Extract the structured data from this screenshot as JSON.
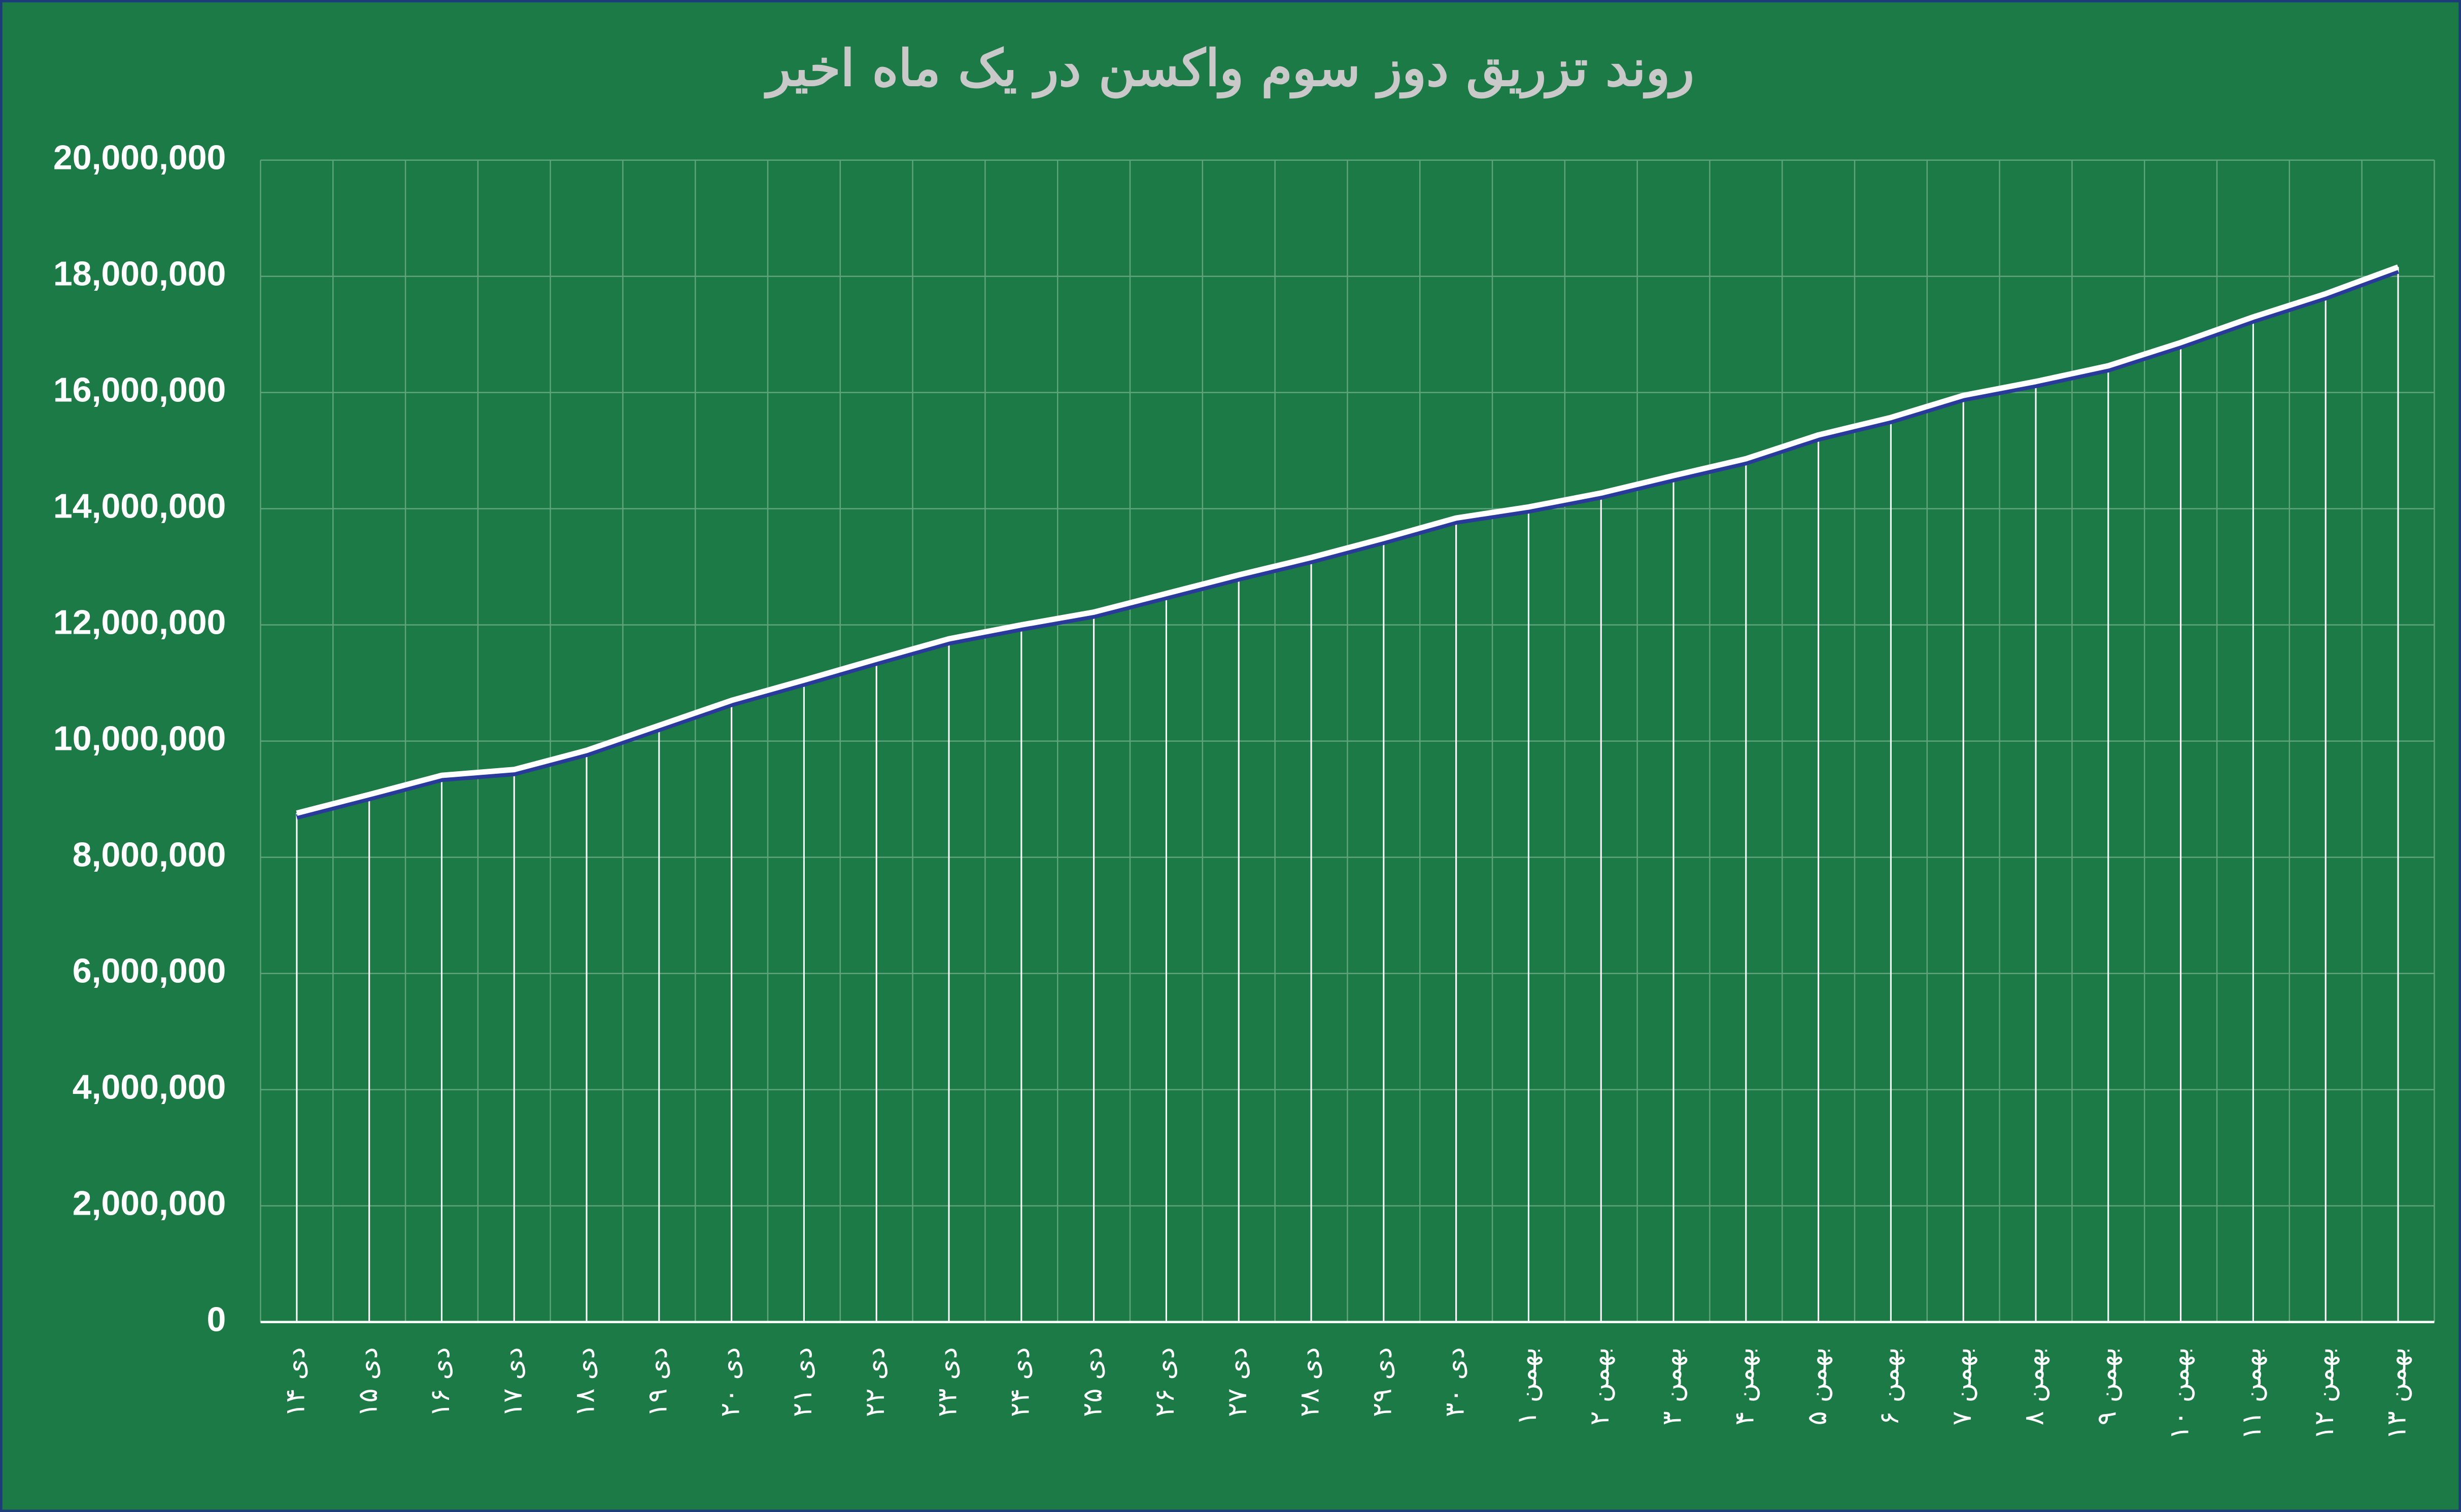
{
  "chart_data": {
    "type": "line",
    "title": "روند تزریق دوز سوم واکسن در یک ماه اخیر",
    "categories": [
      "۱۴ دی",
      "۱۵ دی",
      "۱۶ دی",
      "۱۷ دی",
      "۱۸ دی",
      "۱۹ دی",
      "۲۰ دی",
      "۲۱ دی",
      "۲۲ دی",
      "۲۳ دی",
      "۲۴ دی",
      "۲۵ دی",
      "۲۶ دی",
      "۲۷ دی",
      "۲۸ دی",
      "۲۹ دی",
      "۳۰ دی",
      "۱ بهمن",
      "۲ بهمن",
      "۳ بهمن",
      "۴ بهمن",
      "۵ بهمن",
      "۶ بهمن",
      "۷ بهمن",
      "۸ بهمن",
      "۹ بهمن",
      "۱۰ بهمن",
      "۱۱ بهمن",
      "۱۲ بهمن",
      "۱۳ بهمن"
    ],
    "values": [
      8760000,
      9080000,
      9410000,
      9510000,
      9840000,
      10270000,
      10700000,
      11050000,
      11410000,
      11760000,
      12000000,
      12220000,
      12540000,
      12860000,
      13160000,
      13490000,
      13840000,
      14030000,
      14270000,
      14570000,
      14860000,
      15270000,
      15570000,
      15950000,
      16190000,
      16460000,
      16860000,
      17300000,
      17700000,
      18160000
    ],
    "color": "#ffffff",
    "ylim": [
      0,
      20000000
    ],
    "yticks": [
      0,
      {
        "value": 2000000,
        "label": "2,000,000"
      },
      {
        "value": 4000000,
        "label": "4,000,000"
      },
      {
        "value": 6000000,
        "label": "6,000,000"
      },
      {
        "value": 8000000,
        "label": "8,000,000"
      },
      {
        "value": 10000000,
        "label": "10,000,000"
      },
      {
        "value": 12000000,
        "label": "12,000,000"
      },
      {
        "value": 14000000,
        "label": "14,000,000"
      },
      {
        "value": 16000000,
        "label": "16,000,000"
      },
      {
        "value": 18000000,
        "label": "18,000,000"
      },
      {
        "value": 20000000,
        "label": "20,000,000"
      }
    ],
    "grid": true,
    "drop_lines": true
  }
}
